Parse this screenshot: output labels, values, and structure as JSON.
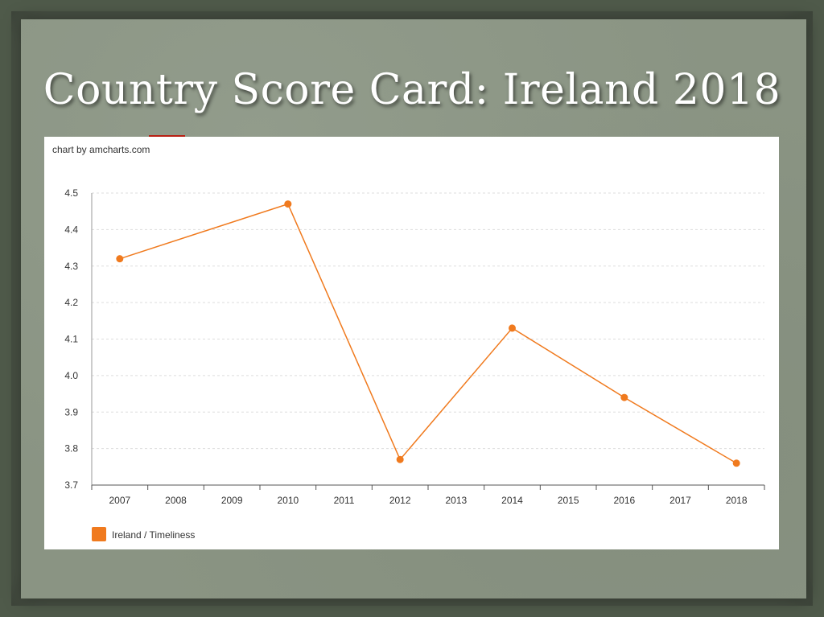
{
  "slide": {
    "title": "Country Score Card: Ireland 2018"
  },
  "chart_credit": "chart by amcharts.com",
  "chart_data": {
    "type": "line",
    "x": [
      "2007",
      "2008",
      "2009",
      "2010",
      "2011",
      "2012",
      "2013",
      "2014",
      "2015",
      "2016",
      "2017",
      "2018"
    ],
    "series": [
      {
        "name": "Ireland / Timeliness",
        "color": "#f07a1e",
        "points": [
          {
            "x": "2007",
            "y": 4.32
          },
          {
            "x": "2010",
            "y": 4.47
          },
          {
            "x": "2012",
            "y": 3.77
          },
          {
            "x": "2014",
            "y": 4.13
          },
          {
            "x": "2016",
            "y": 3.94
          },
          {
            "x": "2018",
            "y": 3.76
          }
        ]
      }
    ],
    "yticks": [
      "3.7",
      "3.8",
      "3.9",
      "4.0",
      "4.1",
      "4.2",
      "4.3",
      "4.4",
      "4.5"
    ],
    "ylim": [
      3.7,
      4.5
    ],
    "grid": true,
    "legend_position": "bottom-left"
  }
}
